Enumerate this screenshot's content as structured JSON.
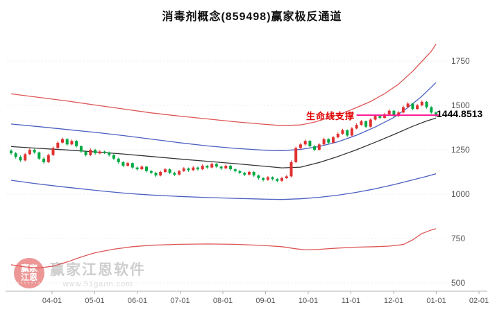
{
  "title": "消毒剂概念(859498)赢家极反通道",
  "annotation": {
    "lifeline_label": "生命线支撑",
    "support_price": "1444.8513"
  },
  "watermark": {
    "brand": "赢家江恩软件",
    "url": "www.51gann.com",
    "logo_line1": "赢家",
    "logo_line2": "江恩"
  },
  "colors": {
    "up": "#e03131",
    "down": "#00a843",
    "channel_red": "#dd5555",
    "channel_blue": "#4b5fc0",
    "channel_mid": "#333333",
    "support": "#ff1493",
    "annotation": "#e00000",
    "axis_text": "#555555",
    "grid": "#ececec",
    "axis_line": "#b0b0b0"
  },
  "chart_data": {
    "type": "candlestick",
    "title": "消毒剂概念(859498)赢家极反通道",
    "xlabel": "",
    "ylabel": "",
    "ylim": [
      473,
      1900
    ],
    "grid": "faint-horizontal-dotted",
    "legend_position": "none",
    "y_tick_values": [
      1750,
      1500,
      1250,
      1000,
      750,
      500
    ],
    "x_tick_labels": [
      "04-01",
      "05-01",
      "06-01",
      "07-01",
      "08-01",
      "09-01",
      "10-01",
      "11-01",
      "12-01",
      "01-01",
      "02-01"
    ],
    "support_level": 1444.8513,
    "support_span_indices": [
      74,
      91
    ],
    "candles_ohlc": [
      [
        1245,
        1252,
        1222,
        1230
      ],
      [
        1230,
        1238,
        1200,
        1210
      ],
      [
        1210,
        1218,
        1182,
        1190
      ],
      [
        1190,
        1232,
        1185,
        1225
      ],
      [
        1225,
        1258,
        1220,
        1250
      ],
      [
        1250,
        1256,
        1228,
        1235
      ],
      [
        1235,
        1240,
        1192,
        1200
      ],
      [
        1200,
        1208,
        1172,
        1180
      ],
      [
        1180,
        1228,
        1175,
        1220
      ],
      [
        1220,
        1268,
        1215,
        1260
      ],
      [
        1260,
        1298,
        1255,
        1290
      ],
      [
        1290,
        1318,
        1285,
        1310
      ],
      [
        1310,
        1315,
        1272,
        1280
      ],
      [
        1280,
        1308,
        1275,
        1300
      ],
      [
        1300,
        1305,
        1262,
        1270
      ],
      [
        1270,
        1275,
        1232,
        1240
      ],
      [
        1240,
        1246,
        1212,
        1220
      ],
      [
        1220,
        1258,
        1215,
        1250
      ],
      [
        1250,
        1255,
        1222,
        1230
      ],
      [
        1230,
        1248,
        1224,
        1240
      ],
      [
        1240,
        1244,
        1226,
        1235
      ],
      [
        1235,
        1240,
        1212,
        1220
      ],
      [
        1220,
        1226,
        1192,
        1200
      ],
      [
        1200,
        1205,
        1172,
        1180
      ],
      [
        1180,
        1186,
        1152,
        1160
      ],
      [
        1160,
        1182,
        1155,
        1175
      ],
      [
        1175,
        1178,
        1142,
        1150
      ],
      [
        1150,
        1156,
        1132,
        1140
      ],
      [
        1140,
        1162,
        1135,
        1155
      ],
      [
        1155,
        1158,
        1122,
        1130
      ],
      [
        1130,
        1135,
        1112,
        1120
      ],
      [
        1120,
        1126,
        1096,
        1105
      ],
      [
        1105,
        1132,
        1100,
        1125
      ],
      [
        1125,
        1148,
        1120,
        1140
      ],
      [
        1140,
        1145,
        1112,
        1120
      ],
      [
        1120,
        1126,
        1102,
        1110
      ],
      [
        1110,
        1136,
        1105,
        1130
      ],
      [
        1130,
        1152,
        1125,
        1145
      ],
      [
        1145,
        1150,
        1126,
        1135
      ],
      [
        1135,
        1158,
        1130,
        1150
      ],
      [
        1150,
        1155,
        1132,
        1140
      ],
      [
        1140,
        1168,
        1135,
        1160
      ],
      [
        1160,
        1165,
        1142,
        1150
      ],
      [
        1150,
        1178,
        1145,
        1170
      ],
      [
        1170,
        1175,
        1147,
        1155
      ],
      [
        1155,
        1160,
        1136,
        1145
      ],
      [
        1145,
        1168,
        1140,
        1160
      ],
      [
        1160,
        1165,
        1132,
        1140
      ],
      [
        1140,
        1145,
        1122,
        1130
      ],
      [
        1130,
        1136,
        1112,
        1120
      ],
      [
        1120,
        1125,
        1102,
        1110
      ],
      [
        1110,
        1132,
        1105,
        1125
      ],
      [
        1125,
        1130,
        1097,
        1105
      ],
      [
        1105,
        1110,
        1082,
        1090
      ],
      [
        1090,
        1096,
        1072,
        1080
      ],
      [
        1080,
        1102,
        1075,
        1095
      ],
      [
        1095,
        1100,
        1077,
        1085
      ],
      [
        1085,
        1090,
        1066,
        1075
      ],
      [
        1075,
        1098,
        1070,
        1090
      ],
      [
        1090,
        1108,
        1085,
        1100
      ],
      [
        1100,
        1190,
        1095,
        1180
      ],
      [
        1180,
        1268,
        1175,
        1260
      ],
      [
        1260,
        1288,
        1250,
        1280
      ],
      [
        1280,
        1308,
        1272,
        1300
      ],
      [
        1300,
        1305,
        1262,
        1270
      ],
      [
        1270,
        1276,
        1242,
        1250
      ],
      [
        1250,
        1288,
        1245,
        1280
      ],
      [
        1280,
        1318,
        1275,
        1310
      ],
      [
        1310,
        1315,
        1282,
        1290
      ],
      [
        1290,
        1328,
        1285,
        1320
      ],
      [
        1320,
        1348,
        1315,
        1340
      ],
      [
        1340,
        1368,
        1335,
        1360
      ],
      [
        1360,
        1365,
        1322,
        1330
      ],
      [
        1330,
        1378,
        1325,
        1370
      ],
      [
        1370,
        1398,
        1365,
        1390
      ],
      [
        1390,
        1418,
        1385,
        1410
      ],
      [
        1410,
        1415,
        1372,
        1380
      ],
      [
        1380,
        1428,
        1375,
        1420
      ],
      [
        1420,
        1448,
        1415,
        1440
      ],
      [
        1440,
        1446,
        1422,
        1430
      ],
      [
        1430,
        1458,
        1425,
        1450
      ],
      [
        1450,
        1478,
        1445,
        1470
      ],
      [
        1470,
        1475,
        1432,
        1440
      ],
      [
        1440,
        1468,
        1435,
        1460
      ],
      [
        1460,
        1498,
        1455,
        1490
      ],
      [
        1490,
        1518,
        1485,
        1510
      ],
      [
        1510,
        1515,
        1472,
        1480
      ],
      [
        1480,
        1508,
        1475,
        1500
      ],
      [
        1500,
        1528,
        1495,
        1520
      ],
      [
        1520,
        1525,
        1482,
        1490
      ],
      [
        1490,
        1495,
        1452,
        1460
      ],
      [
        1460,
        1466,
        1432,
        1444.85
      ]
    ],
    "lines": [
      {
        "name": "upper-channel-red",
        "color": "#dd5555",
        "points": [
          [
            0,
            1565
          ],
          [
            6,
            1545
          ],
          [
            12,
            1525
          ],
          [
            18,
            1502
          ],
          [
            24,
            1480
          ],
          [
            30,
            1458
          ],
          [
            36,
            1440
          ],
          [
            42,
            1424
          ],
          [
            48,
            1408
          ],
          [
            54,
            1394
          ],
          [
            58,
            1386
          ],
          [
            62,
            1390
          ],
          [
            65,
            1406
          ],
          [
            68,
            1430
          ],
          [
            71,
            1456
          ],
          [
            74,
            1488
          ],
          [
            77,
            1522
          ],
          [
            80,
            1566
          ],
          [
            83,
            1620
          ],
          [
            86,
            1692
          ],
          [
            88,
            1748
          ],
          [
            90,
            1805
          ],
          [
            91,
            1845
          ]
        ]
      },
      {
        "name": "upper-channel-blue",
        "color": "#4b5fc0",
        "points": [
          [
            0,
            1395
          ],
          [
            6,
            1380
          ],
          [
            12,
            1364
          ],
          [
            18,
            1348
          ],
          [
            24,
            1330
          ],
          [
            30,
            1310
          ],
          [
            36,
            1290
          ],
          [
            42,
            1272
          ],
          [
            48,
            1258
          ],
          [
            54,
            1248
          ],
          [
            58,
            1245
          ],
          [
            62,
            1252
          ],
          [
            66,
            1268
          ],
          [
            70,
            1295
          ],
          [
            74,
            1332
          ],
          [
            78,
            1378
          ],
          [
            82,
            1432
          ],
          [
            85,
            1488
          ],
          [
            88,
            1552
          ],
          [
            91,
            1628
          ]
        ]
      },
      {
        "name": "midline-black",
        "color": "#333333",
        "points": [
          [
            0,
            1268
          ],
          [
            6,
            1258
          ],
          [
            12,
            1249
          ],
          [
            18,
            1238
          ],
          [
            24,
            1226
          ],
          [
            30,
            1212
          ],
          [
            36,
            1198
          ],
          [
            42,
            1185
          ],
          [
            48,
            1172
          ],
          [
            54,
            1158
          ],
          [
            58,
            1148
          ],
          [
            62,
            1152
          ],
          [
            66,
            1178
          ],
          [
            70,
            1212
          ],
          [
            74,
            1250
          ],
          [
            78,
            1292
          ],
          [
            82,
            1336
          ],
          [
            86,
            1382
          ],
          [
            89,
            1412
          ],
          [
            91,
            1428
          ]
        ]
      },
      {
        "name": "lower-channel-blue",
        "color": "#4b5fc0",
        "points": [
          [
            0,
            1078
          ],
          [
            5,
            1060
          ],
          [
            10,
            1044
          ],
          [
            15,
            1030
          ],
          [
            20,
            1016
          ],
          [
            25,
            1004
          ],
          [
            30,
            995
          ],
          [
            36,
            987
          ],
          [
            42,
            981
          ],
          [
            48,
            976
          ],
          [
            54,
            972
          ],
          [
            58,
            970
          ],
          [
            62,
            974
          ],
          [
            66,
            982
          ],
          [
            70,
            994
          ],
          [
            74,
            1010
          ],
          [
            78,
            1030
          ],
          [
            82,
            1054
          ],
          [
            86,
            1080
          ],
          [
            89,
            1100
          ],
          [
            91,
            1115
          ]
        ]
      },
      {
        "name": "lower-channel-red",
        "color": "#dd5555",
        "points": [
          [
            0,
            602
          ],
          [
            3,
            590
          ],
          [
            6,
            584
          ],
          [
            9,
            594
          ],
          [
            12,
            618
          ],
          [
            15,
            646
          ],
          [
            18,
            670
          ],
          [
            22,
            690
          ],
          [
            26,
            704
          ],
          [
            30,
            712
          ],
          [
            36,
            717
          ],
          [
            42,
            719
          ],
          [
            48,
            717
          ],
          [
            54,
            711
          ],
          [
            58,
            704
          ],
          [
            61,
            692
          ],
          [
            63,
            686
          ],
          [
            66,
            689
          ],
          [
            70,
            696
          ],
          [
            74,
            701
          ],
          [
            78,
            704
          ],
          [
            81,
            707
          ],
          [
            84,
            716
          ],
          [
            86,
            742
          ],
          [
            88,
            778
          ],
          [
            90,
            798
          ],
          [
            91,
            805
          ]
        ]
      }
    ]
  }
}
